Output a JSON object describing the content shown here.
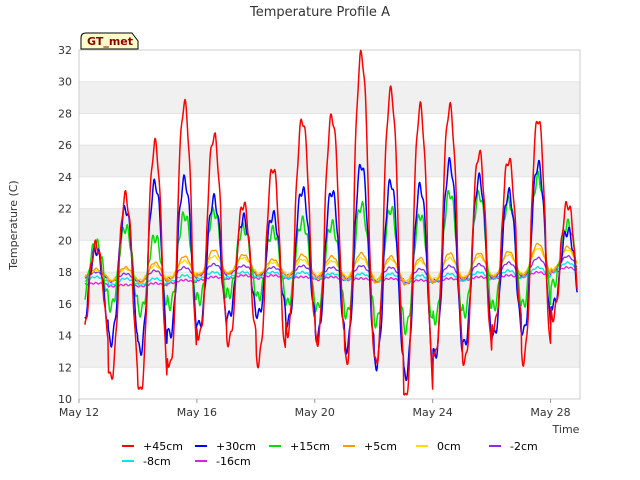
{
  "chart_data": {
    "type": "line",
    "title": "Temperature Profile A",
    "xlabel": "Time",
    "ylabel": "Temperature (C)",
    "badge": "GT_met",
    "x_range": [
      "2023-05-12",
      "2023-05-29"
    ],
    "x_ticks": [
      {
        "date": "2023-05-12",
        "label": "May 12"
      },
      {
        "date": "2023-05-16",
        "label": "May 16"
      },
      {
        "date": "2023-05-20",
        "label": "May 20"
      },
      {
        "date": "2023-05-24",
        "label": "May 24"
      },
      {
        "date": "2023-05-28",
        "label": "May 28"
      }
    ],
    "ylim": [
      10,
      32
    ],
    "y_ticks": [
      10,
      12,
      14,
      16,
      18,
      20,
      22,
      24,
      26,
      28,
      30,
      32
    ],
    "grid": "horizontal bands",
    "legend_position": "bottom",
    "series": [
      {
        "name": "+45cm",
        "color": "#ff0000",
        "daily_max": [
          19.7,
          22.8,
          26.1,
          28.6,
          26.6,
          22.3,
          24.6,
          27.6,
          27.8,
          31.7,
          29.4,
          28.4,
          28.4,
          25.5,
          25.1,
          27.7,
          22.3
        ],
        "daily_min": [
          13.7,
          11.3,
          10.4,
          12.0,
          13.9,
          13.6,
          12.3,
          14.2,
          13.6,
          12.3,
          12.2,
          10.0,
          12.7,
          12.3,
          14.5,
          12.4,
          15.2
        ]
      },
      {
        "name": "+30cm",
        "color": "#0000ff",
        "daily_max": [
          19.4,
          22.0,
          23.6,
          23.8,
          22.6,
          21.4,
          21.6,
          23.2,
          23.1,
          24.8,
          23.7,
          23.4,
          24.9,
          23.9,
          23.0,
          24.8,
          20.6
        ],
        "daily_min": [
          14.5,
          13.6,
          13.0,
          14.0,
          14.6,
          15.2,
          15.3,
          14.8,
          13.9,
          13.2,
          12.1,
          11.4,
          12.7,
          13.4,
          14.0,
          14.2,
          15.9
        ]
      },
      {
        "name": "+15cm",
        "color": "#00dd00",
        "daily_max": [
          19.8,
          20.8,
          20.2,
          21.6,
          21.8,
          20.8,
          20.6,
          21.2,
          21.0,
          22.2,
          22.0,
          21.6,
          23.0,
          22.9,
          22.5,
          24.0,
          21.0
        ],
        "daily_min": [
          16.2,
          15.8,
          15.5,
          15.9,
          16.2,
          16.6,
          16.4,
          16.0,
          15.7,
          15.3,
          14.8,
          14.4,
          15.0,
          15.4,
          15.8,
          15.9,
          17.2
        ]
      },
      {
        "name": "+5cm",
        "color": "#ff9900",
        "daily_max": [
          18.2,
          18.3,
          18.6,
          19.0,
          19.4,
          19.1,
          18.8,
          19.1,
          19.0,
          19.2,
          19.0,
          18.9,
          19.2,
          19.2,
          19.3,
          19.8,
          19.6
        ],
        "daily_min": [
          17.6,
          17.4,
          17.3,
          17.5,
          17.8,
          17.9,
          17.8,
          17.7,
          17.6,
          17.5,
          17.3,
          17.2,
          17.4,
          17.6,
          17.7,
          17.8,
          18.1
        ]
      },
      {
        "name": "0cm",
        "color": "#ffdd00",
        "daily_max": [
          18.1,
          18.2,
          18.4,
          18.7,
          19.0,
          18.9,
          18.6,
          18.8,
          18.7,
          18.9,
          18.8,
          18.7,
          18.9,
          19.0,
          19.1,
          19.5,
          19.4
        ],
        "daily_min": [
          17.7,
          17.5,
          17.5,
          17.7,
          17.9,
          18.0,
          17.9,
          17.8,
          17.8,
          17.7,
          17.5,
          17.4,
          17.6,
          17.7,
          17.8,
          17.9,
          18.2
        ]
      },
      {
        "name": "-2cm",
        "color": "#8a2be2",
        "daily_max": [
          18.0,
          17.9,
          18.1,
          18.3,
          18.5,
          18.4,
          18.3,
          18.4,
          18.3,
          18.4,
          18.3,
          18.2,
          18.4,
          18.5,
          18.6,
          18.9,
          19.0
        ],
        "daily_min": [
          17.6,
          17.4,
          17.4,
          17.6,
          17.8,
          17.9,
          17.8,
          17.8,
          17.7,
          17.6,
          17.5,
          17.4,
          17.5,
          17.6,
          17.7,
          17.8,
          18.1
        ]
      },
      {
        "name": "-8cm",
        "color": "#00e5e5",
        "daily_max": [
          17.7,
          17.6,
          17.6,
          17.8,
          18.0,
          18.0,
          18.0,
          18.0,
          17.9,
          17.9,
          17.9,
          17.8,
          17.9,
          18.0,
          18.1,
          18.3,
          18.6
        ],
        "daily_min": [
          17.4,
          17.2,
          17.2,
          17.4,
          17.6,
          17.7,
          17.7,
          17.6,
          17.6,
          17.5,
          17.4,
          17.3,
          17.4,
          17.5,
          17.6,
          17.7,
          18.0
        ]
      },
      {
        "name": "-16cm",
        "color": "#e020e0",
        "daily_max": [
          17.3,
          17.2,
          17.3,
          17.5,
          17.7,
          17.8,
          17.8,
          17.7,
          17.7,
          17.6,
          17.6,
          17.5,
          17.6,
          17.7,
          17.8,
          18.0,
          18.3
        ],
        "daily_min": [
          17.2,
          17.1,
          17.1,
          17.3,
          17.5,
          17.6,
          17.6,
          17.6,
          17.5,
          17.5,
          17.4,
          17.3,
          17.4,
          17.5,
          17.6,
          17.7,
          18.0
        ]
      }
    ]
  }
}
